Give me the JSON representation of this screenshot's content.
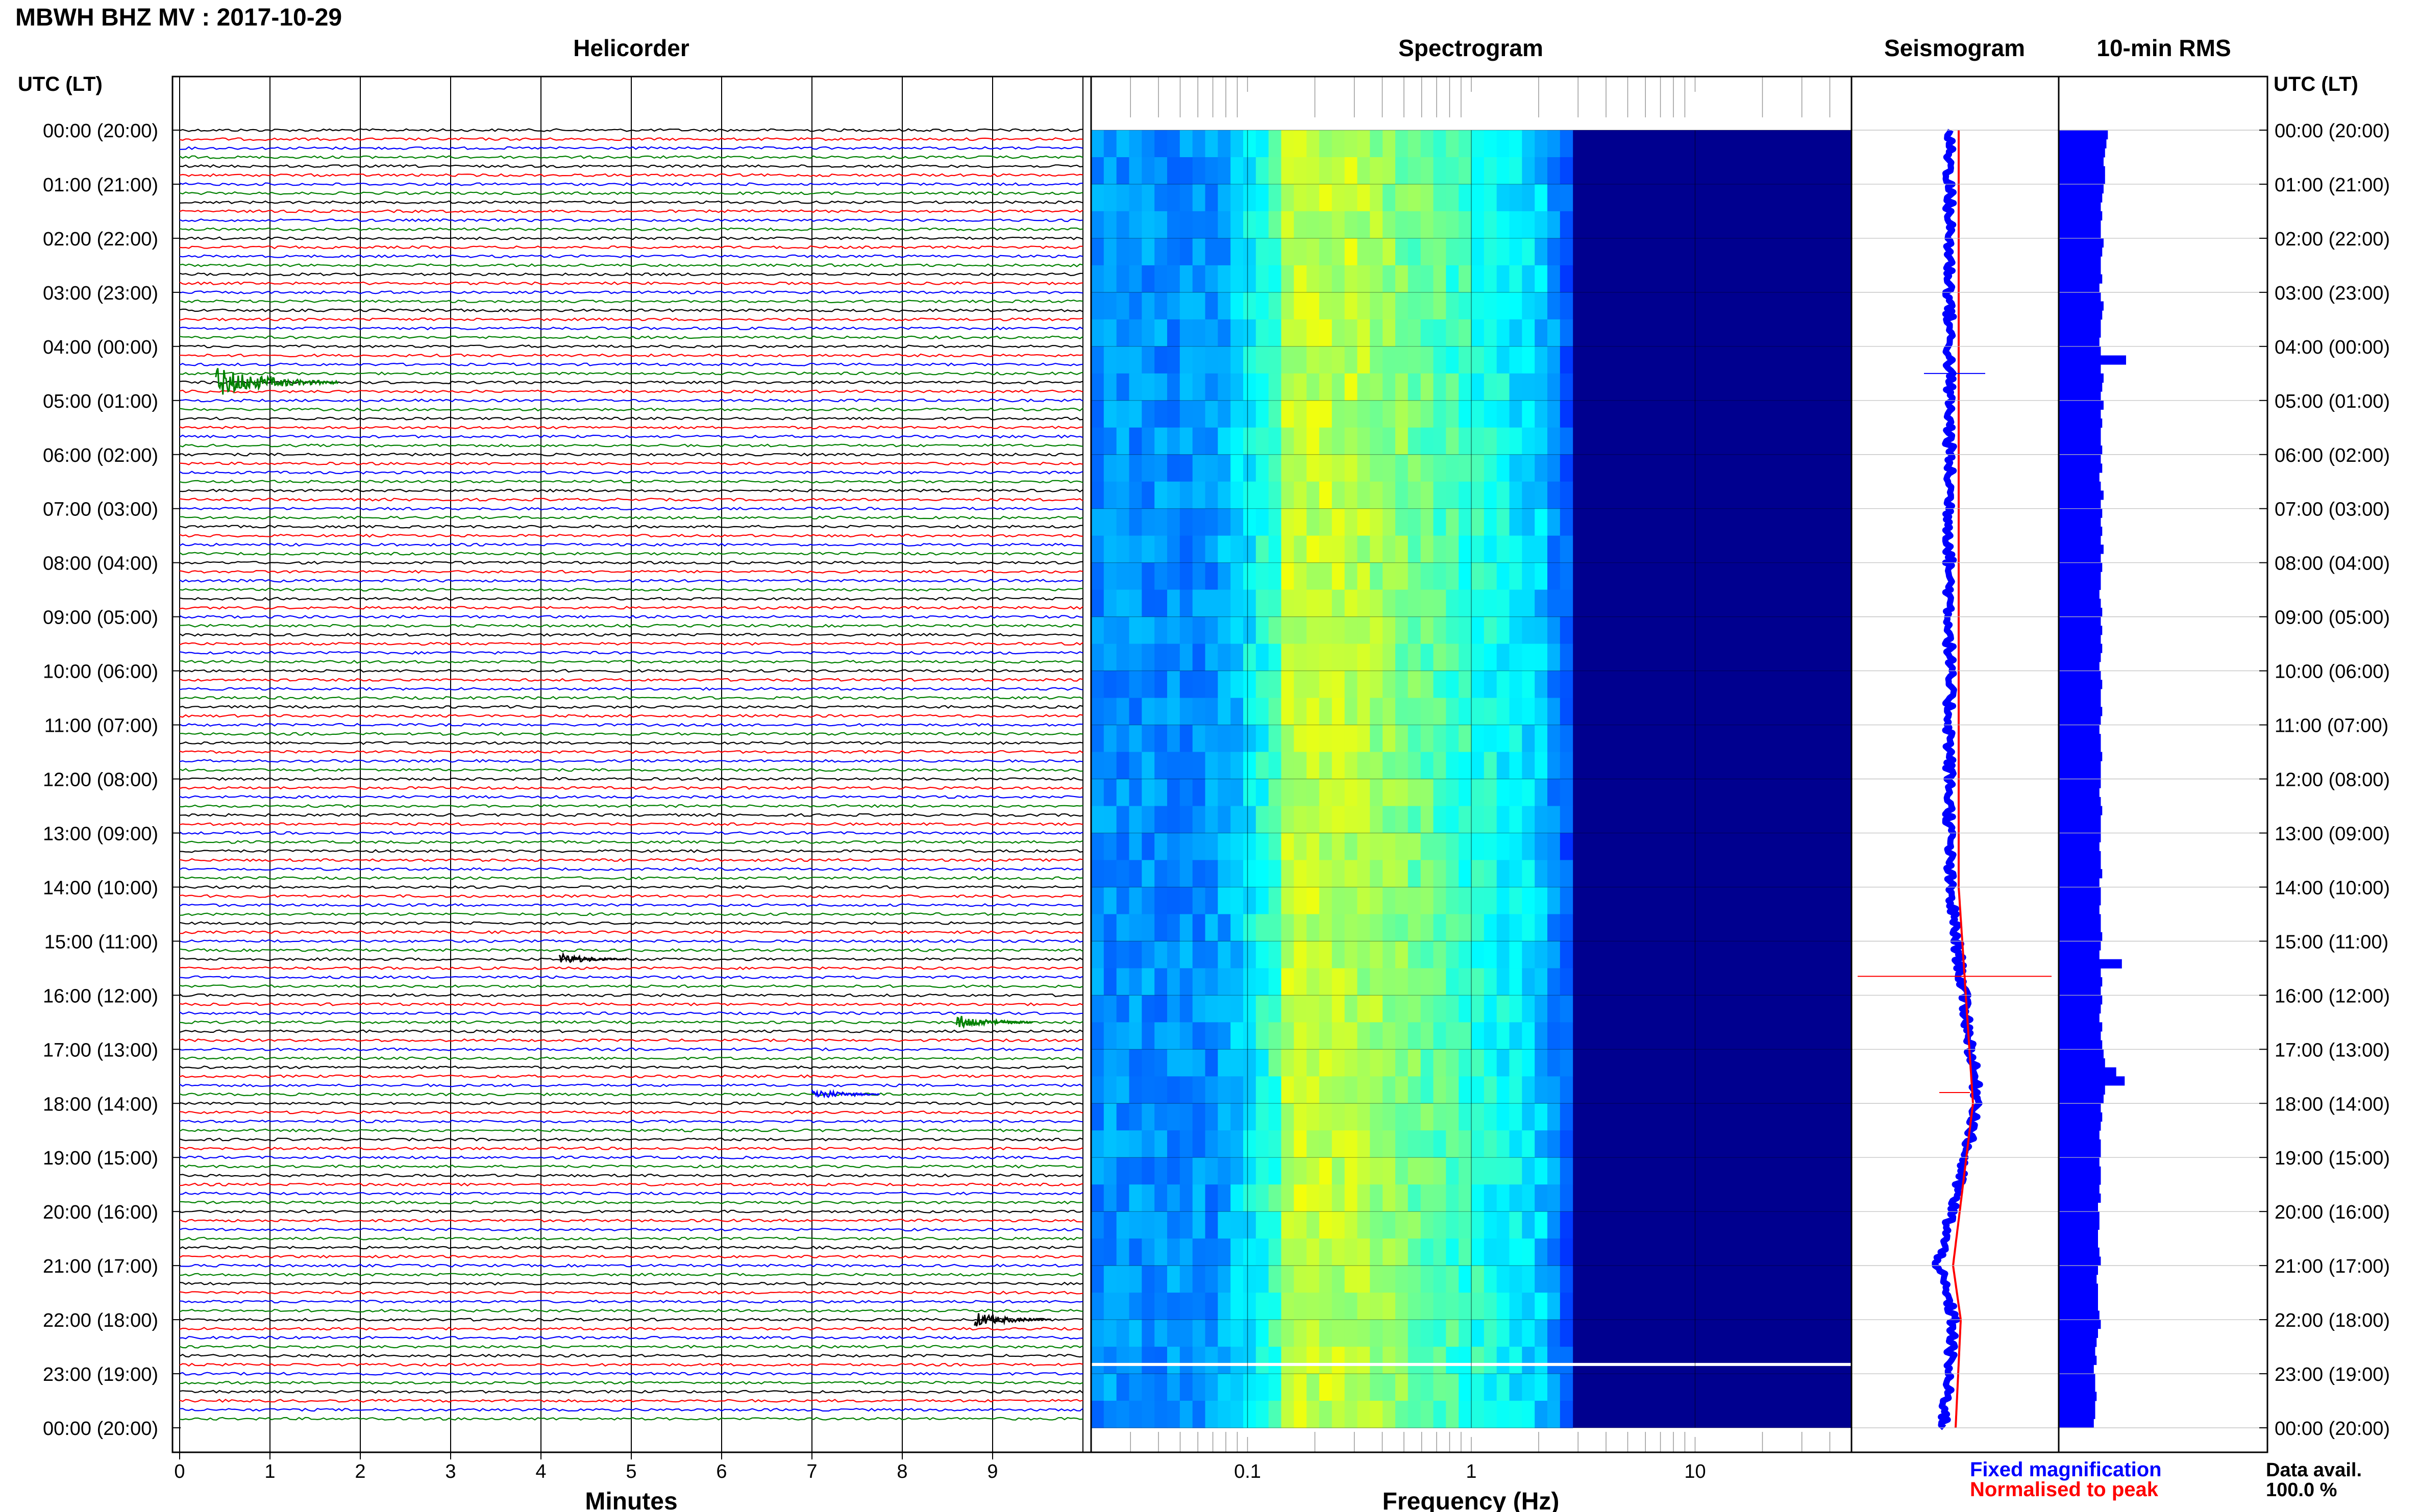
{
  "header": {
    "title": "MBWH BHZ MV : 2017-10-29",
    "panels": {
      "helicorder": "Helicorder",
      "spectrogram": "Spectrogram",
      "seismogram": "Seismogram",
      "rms": "10-min RMS"
    },
    "left_axis_title": "UTC (LT)",
    "right_axis_title": "UTC (LT)"
  },
  "chart_data": {
    "type": "heatmap",
    "station": "MBWH",
    "channel": "BHZ",
    "network": "MV",
    "date": "2017-10-29",
    "time_labels": [
      "00:00 (20:00)",
      "01:00 (21:00)",
      "02:00 (22:00)",
      "03:00 (23:00)",
      "04:00 (00:00)",
      "05:00 (01:00)",
      "06:00 (02:00)",
      "07:00 (03:00)",
      "08:00 (04:00)",
      "09:00 (05:00)",
      "10:00 (06:00)",
      "11:00 (07:00)",
      "12:00 (08:00)",
      "13:00 (09:00)",
      "14:00 (10:00)",
      "15:00 (11:00)",
      "16:00 (12:00)",
      "17:00 (13:00)",
      "18:00 (14:00)",
      "19:00 (15:00)",
      "20:00 (16:00)",
      "21:00 (17:00)",
      "22:00 (18:00)",
      "23:00 (19:00)",
      "00:00 (20:00)"
    ],
    "helicorder": {
      "xlabel": "Minutes",
      "x_ticks": [
        "0",
        "1",
        "2",
        "3",
        "4",
        "5",
        "6",
        "7",
        "8",
        "9"
      ],
      "xlim": [
        0,
        10
      ],
      "lines_per_hour": 6,
      "trace_colors": [
        "#000000",
        "#ff0000",
        "#0000ff",
        "#008000"
      ],
      "events": [
        {
          "time_utc": "04:40",
          "minute": 0.4,
          "color": "#008000",
          "amplitude": 3.0
        },
        {
          "time_utc": "15:20",
          "minute": 4.2,
          "color": "#000000",
          "amplitude": 1.2
        },
        {
          "time_utc": "16:30",
          "minute": 8.6,
          "color": "#008000",
          "amplitude": 1.5
        },
        {
          "time_utc": "17:50",
          "minute": 7.0,
          "color": "#0000ff",
          "amplitude": 1.2
        },
        {
          "time_utc": "22:00",
          "minute": 8.8,
          "color": "#000000",
          "amplitude": 1.5
        }
      ]
    },
    "spectrogram": {
      "xlabel": "Frequency (Hz)",
      "x_scale": "log",
      "xlim": [
        0.02,
        50
      ],
      "x_ticks": [
        "0.1",
        "1",
        "10"
      ],
      "colormap": [
        "#00008f",
        "#0020ff",
        "#0080ff",
        "#00ffff",
        "#80ff80",
        "#ffff00",
        "#ff8000"
      ]
    },
    "seismogram": {
      "series": [
        {
          "name": "Fixed magnification",
          "color": "#0000ff"
        },
        {
          "name": "Normalised to peak",
          "color": "#ff0000"
        }
      ]
    },
    "rms": {
      "values": [
        3.5,
        3.4,
        3.3,
        3.2,
        3.3,
        3.3,
        3.2,
        3.1,
        3.0,
        3.1,
        3.0,
        3.0,
        3.2,
        3.1,
        3.0,
        3.0,
        3.1,
        2.9,
        3.0,
        3.2,
        3.1,
        3.0,
        3.0,
        2.9,
        3.0,
        4.8,
        3.0,
        3.2,
        3.1,
        3.0,
        3.2,
        3.0,
        3.1,
        3.0,
        3.0,
        3.1,
        3.0,
        3.1,
        2.9,
        3.0,
        3.2,
        3.0,
        3.1,
        3.0,
        3.1,
        3.0,
        3.2,
        3.0,
        3.1,
        3.0,
        3.0,
        2.9,
        3.0,
        3.1,
        3.0,
        3.1,
        3.0,
        3.1,
        3.0,
        2.9,
        3.0,
        3.1,
        3.0,
        3.0,
        3.1,
        3.0,
        2.9,
        3.0,
        3.0,
        3.1,
        3.0,
        3.0,
        3.0,
        2.9,
        3.0,
        3.1,
        3.0,
        3.0,
        3.0,
        2.9,
        3.0,
        3.0,
        3.1,
        2.9,
        3.0,
        3.0,
        2.9,
        3.0,
        3.0,
        3.1,
        3.0,
        2.9,
        4.5,
        3.0,
        3.1,
        3.0,
        3.1,
        3.0,
        2.9,
        3.1,
        3.0,
        3.1,
        3.2,
        3.3,
        4.1,
        4.7,
        3.3,
        3.2,
        3.0,
        3.1,
        3.0,
        2.9,
        3.0,
        3.0,
        2.9,
        3.0,
        3.0,
        2.9,
        3.0,
        2.8,
        2.9,
        2.9,
        2.8,
        2.8,
        2.9,
        3.0,
        2.8,
        2.7,
        2.8,
        2.8,
        2.8,
        2.9,
        3.0,
        2.8,
        2.7,
        2.6,
        2.7,
        2.5,
        2.6,
        2.6,
        2.7,
        2.6,
        2.6,
        2.5
      ]
    }
  },
  "footer": {
    "legend_fixed": "Fixed magnification",
    "legend_normalised": "Normalised to peak",
    "data_avail_label": "Data avail.",
    "data_avail_value": "100.0 %"
  }
}
